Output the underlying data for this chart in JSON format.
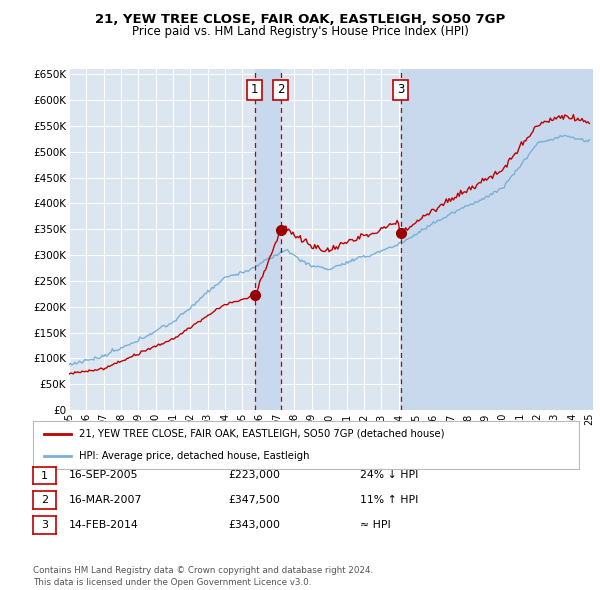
{
  "title1": "21, YEW TREE CLOSE, FAIR OAK, EASTLEIGH, SO50 7GP",
  "title2": "Price paid vs. HM Land Registry's House Price Index (HPI)",
  "ylim": [
    0,
    660000
  ],
  "yticks": [
    0,
    50000,
    100000,
    150000,
    200000,
    250000,
    300000,
    350000,
    400000,
    450000,
    500000,
    550000,
    600000,
    650000
  ],
  "ytick_labels": [
    "£0",
    "£50K",
    "£100K",
    "£150K",
    "£200K",
    "£250K",
    "£300K",
    "£350K",
    "£400K",
    "£450K",
    "£500K",
    "£550K",
    "£600K",
    "£650K"
  ],
  "background_color": "#ffffff",
  "plot_bg_color": "#dce6f1",
  "shade_color": "#c8d9ed",
  "grid_color": "#ffffff",
  "hpi_line_color": "#7ab0d8",
  "price_line_color": "#c00000",
  "sale1_x": 2005.71,
  "sale1_price": 223000,
  "sale2_x": 2007.21,
  "sale2_price": 347500,
  "sale3_x": 2014.12,
  "sale3_price": 343000,
  "vline_color": "#c00000",
  "marker_fill": "#990000",
  "legend_label1": "21, YEW TREE CLOSE, FAIR OAK, EASTLEIGH, SO50 7GP (detached house)",
  "legend_label2": "HPI: Average price, detached house, Eastleigh",
  "table_data": [
    {
      "num": "1",
      "date": "16-SEP-2005",
      "price": "£223,000",
      "hpi": "24% ↓ HPI"
    },
    {
      "num": "2",
      "date": "16-MAR-2007",
      "price": "£347,500",
      "hpi": "11% ↑ HPI"
    },
    {
      "num": "3",
      "date": "14-FEB-2014",
      "price": "£343,000",
      "hpi": "≈ HPI"
    }
  ],
  "footnote": "Contains HM Land Registry data © Crown copyright and database right 2024.\nThis data is licensed under the Open Government Licence v3.0.",
  "xmin": 1995.3,
  "xmax": 2025.2
}
